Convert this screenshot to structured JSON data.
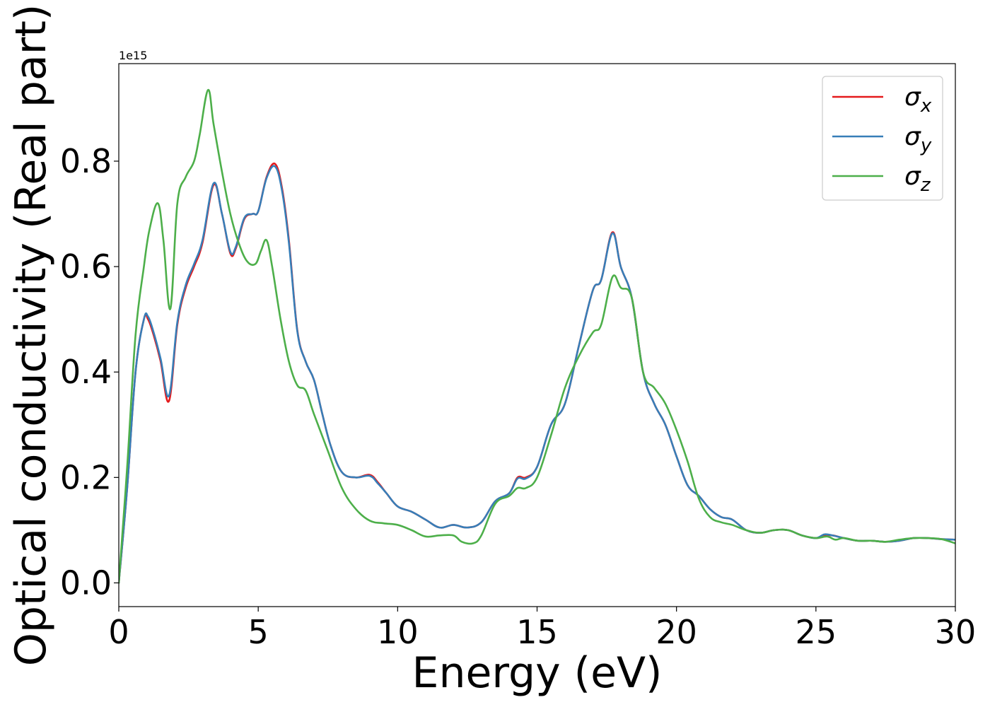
{
  "chart_data": {
    "type": "line",
    "xlabel": "Energy (eV)",
    "ylabel": "Optical conductivity (Real part)",
    "y_offset_label": "1e15",
    "xlim": [
      0,
      30
    ],
    "ylim": [
      -0.045,
      0.985
    ],
    "xticks": [
      0,
      5,
      10,
      15,
      20,
      25,
      30
    ],
    "xtick_labels": [
      "0",
      "5",
      "10",
      "15",
      "20",
      "25",
      "30"
    ],
    "yticks": [
      0.0,
      0.2,
      0.4,
      0.6,
      0.8
    ],
    "ytick_labels": [
      "0.0",
      "0.2",
      "0.4",
      "0.6",
      "0.8"
    ],
    "grid": false,
    "legend_position": "top-right",
    "series": [
      {
        "name": "σx",
        "symbol": "σ",
        "subscript": "x",
        "color": "#e41a1c",
        "x": [
          0,
          0.3,
          0.6,
          0.9,
          1.05,
          1.25,
          1.5,
          1.8,
          2.1,
          2.4,
          2.7,
          3.0,
          3.4,
          3.7,
          4.0,
          4.2,
          4.5,
          4.8,
          5.0,
          5.3,
          5.6,
          5.85,
          6.1,
          6.4,
          6.7,
          7.0,
          7.3,
          7.6,
          8.0,
          8.5,
          9.0,
          9.3,
          9.6,
          10.0,
          10.5,
          11.0,
          11.5,
          12.0,
          12.5,
          13.0,
          13.5,
          14.0,
          14.3,
          14.6,
          15.0,
          15.5,
          16.0,
          16.5,
          17.0,
          17.3,
          17.7,
          18.0,
          18.4,
          18.8,
          19.2,
          19.6,
          20.0,
          20.4,
          20.8,
          21.2,
          21.6,
          22.0,
          22.5,
          23.0,
          23.5,
          24.0,
          24.5,
          25.0,
          25.3,
          25.6,
          26.0,
          26.5,
          27.0,
          27.5,
          28.0,
          28.5,
          29.0,
          29.5,
          30.0
        ],
        "y": [
          0.0,
          0.18,
          0.4,
          0.5,
          0.5,
          0.47,
          0.42,
          0.345,
          0.49,
          0.56,
          0.6,
          0.645,
          0.755,
          0.7,
          0.625,
          0.635,
          0.69,
          0.7,
          0.705,
          0.77,
          0.795,
          0.75,
          0.65,
          0.48,
          0.42,
          0.385,
          0.32,
          0.26,
          0.21,
          0.2,
          0.205,
          0.19,
          0.17,
          0.145,
          0.135,
          0.12,
          0.105,
          0.11,
          0.105,
          0.115,
          0.155,
          0.17,
          0.2,
          0.2,
          0.22,
          0.3,
          0.34,
          0.45,
          0.555,
          0.575,
          0.665,
          0.6,
          0.54,
          0.4,
          0.34,
          0.3,
          0.24,
          0.185,
          0.165,
          0.14,
          0.125,
          0.12,
          0.1,
          0.095,
          0.1,
          0.1,
          0.09,
          0.085,
          0.09,
          0.09,
          0.085,
          0.08,
          0.08,
          0.078,
          0.08,
          0.085,
          0.085,
          0.083,
          0.082
        ]
      },
      {
        "name": "σy",
        "symbol": "σ",
        "subscript": "y",
        "color": "#377eb8",
        "x": [
          0,
          0.3,
          0.6,
          0.9,
          1.05,
          1.25,
          1.5,
          1.8,
          2.1,
          2.4,
          2.7,
          3.0,
          3.4,
          3.7,
          4.0,
          4.2,
          4.5,
          4.8,
          5.0,
          5.3,
          5.6,
          5.85,
          6.1,
          6.4,
          6.7,
          7.0,
          7.3,
          7.6,
          8.0,
          8.5,
          9.0,
          9.3,
          9.6,
          10.0,
          10.5,
          11.0,
          11.5,
          12.0,
          12.5,
          13.0,
          13.5,
          14.0,
          14.3,
          14.6,
          15.0,
          15.5,
          16.0,
          16.5,
          17.0,
          17.3,
          17.7,
          18.0,
          18.4,
          18.8,
          19.2,
          19.6,
          20.0,
          20.4,
          20.8,
          21.2,
          21.6,
          22.0,
          22.5,
          23.0,
          23.5,
          24.0,
          24.5,
          25.0,
          25.3,
          25.6,
          26.0,
          26.5,
          27.0,
          27.5,
          28.0,
          28.5,
          29.0,
          29.5,
          30.0
        ],
        "y": [
          0.0,
          0.18,
          0.4,
          0.5,
          0.505,
          0.475,
          0.425,
          0.355,
          0.495,
          0.565,
          0.605,
          0.65,
          0.758,
          0.7,
          0.628,
          0.638,
          0.692,
          0.7,
          0.705,
          0.768,
          0.79,
          0.745,
          0.645,
          0.478,
          0.42,
          0.385,
          0.32,
          0.26,
          0.21,
          0.2,
          0.203,
          0.188,
          0.17,
          0.145,
          0.135,
          0.12,
          0.105,
          0.11,
          0.105,
          0.115,
          0.155,
          0.17,
          0.198,
          0.198,
          0.22,
          0.3,
          0.34,
          0.45,
          0.555,
          0.575,
          0.663,
          0.6,
          0.54,
          0.4,
          0.34,
          0.3,
          0.24,
          0.185,
          0.165,
          0.14,
          0.125,
          0.12,
          0.1,
          0.095,
          0.1,
          0.1,
          0.09,
          0.085,
          0.092,
          0.09,
          0.085,
          0.08,
          0.08,
          0.078,
          0.08,
          0.085,
          0.085,
          0.083,
          0.082
        ]
      },
      {
        "name": "σz",
        "symbol": "σ",
        "subscript": "z",
        "color": "#4daf4a",
        "x": [
          0,
          0.3,
          0.6,
          0.9,
          1.1,
          1.4,
          1.6,
          1.85,
          2.1,
          2.4,
          2.7,
          2.9,
          3.2,
          3.4,
          3.7,
          4.0,
          4.3,
          4.6,
          4.9,
          5.1,
          5.3,
          5.5,
          5.8,
          6.1,
          6.4,
          6.7,
          7.0,
          7.5,
          8.0,
          8.5,
          9.0,
          9.5,
          10.0,
          10.5,
          11.0,
          11.5,
          12.0,
          12.3,
          12.7,
          13.0,
          13.5,
          14.0,
          14.3,
          14.6,
          15.0,
          15.5,
          16.0,
          16.5,
          17.0,
          17.3,
          17.7,
          18.0,
          18.4,
          18.8,
          19.2,
          19.6,
          20.0,
          20.4,
          20.8,
          21.2,
          21.6,
          22.0,
          22.5,
          23.0,
          23.5,
          24.0,
          24.5,
          25.0,
          25.4,
          25.7,
          26.0,
          26.5,
          27.0,
          27.5,
          28.0,
          28.5,
          29.0,
          29.5,
          30.0
        ],
        "y": [
          0.0,
          0.22,
          0.47,
          0.6,
          0.67,
          0.72,
          0.65,
          0.52,
          0.72,
          0.77,
          0.8,
          0.85,
          0.935,
          0.87,
          0.78,
          0.7,
          0.645,
          0.61,
          0.605,
          0.63,
          0.65,
          0.6,
          0.5,
          0.42,
          0.375,
          0.365,
          0.32,
          0.25,
          0.18,
          0.14,
          0.118,
          0.113,
          0.11,
          0.1,
          0.088,
          0.09,
          0.09,
          0.078,
          0.075,
          0.09,
          0.15,
          0.165,
          0.18,
          0.18,
          0.2,
          0.28,
          0.37,
          0.43,
          0.475,
          0.49,
          0.58,
          0.56,
          0.54,
          0.4,
          0.37,
          0.34,
          0.29,
          0.23,
          0.16,
          0.125,
          0.115,
          0.11,
          0.1,
          0.095,
          0.1,
          0.1,
          0.09,
          0.085,
          0.088,
          0.082,
          0.085,
          0.08,
          0.08,
          0.078,
          0.082,
          0.085,
          0.085,
          0.083,
          0.075
        ]
      }
    ]
  }
}
